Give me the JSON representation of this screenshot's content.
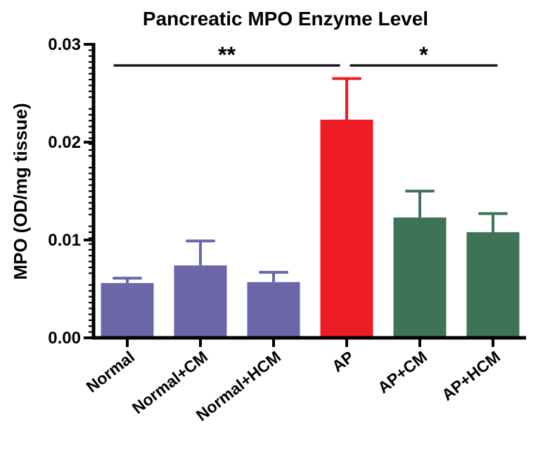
{
  "chart_data": {
    "type": "bar",
    "title": "Pancreatic MPO Enzyme Level",
    "xlabel": "",
    "ylabel": "MPO (OD/mg tissue)",
    "ylim": [
      0,
      0.03
    ],
    "yticks": [
      0,
      0.01,
      0.02,
      0.03
    ],
    "ytick_labels": [
      "0.00",
      "0.01",
      "0.02",
      "0.03"
    ],
    "categories": [
      "Normal",
      "Normal+CM",
      "Normal+HCM",
      "AP",
      "AP+CM",
      "AP+HCM"
    ],
    "values": [
      0.0056,
      0.0074,
      0.0057,
      0.0223,
      0.0123,
      0.0108
    ],
    "errors": [
      0.0005,
      0.0025,
      0.001,
      0.0042,
      0.0027,
      0.0019
    ],
    "colors": [
      "#6b66a8",
      "#6b66a8",
      "#6b66a8",
      "#ee1c24",
      "#3e7358",
      "#3e7358"
    ],
    "significance": [
      {
        "from": 0,
        "to": 3,
        "label": "**"
      },
      {
        "from": 3,
        "to": 5,
        "label": "*"
      }
    ]
  }
}
